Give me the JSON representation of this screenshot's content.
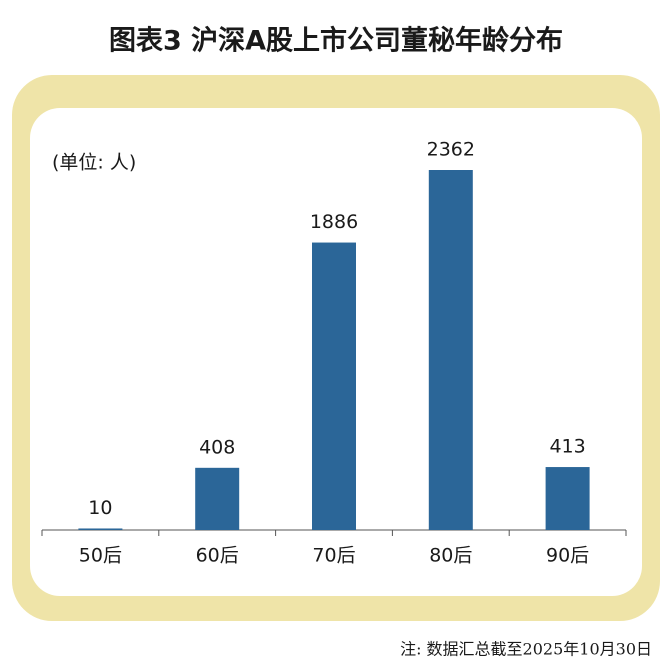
{
  "chart_data": {
    "type": "bar",
    "title": "图表3  沪深A股上市公司董秘年龄分布",
    "unit_label": "(单位: 人)",
    "categories": [
      "50后",
      "60后",
      "70后",
      "80后",
      "90后"
    ],
    "values": [
      10,
      408,
      1886,
      2362,
      413
    ],
    "color": "#2b6698",
    "note": "注: 数据汇总截至2025年10月30日"
  }
}
